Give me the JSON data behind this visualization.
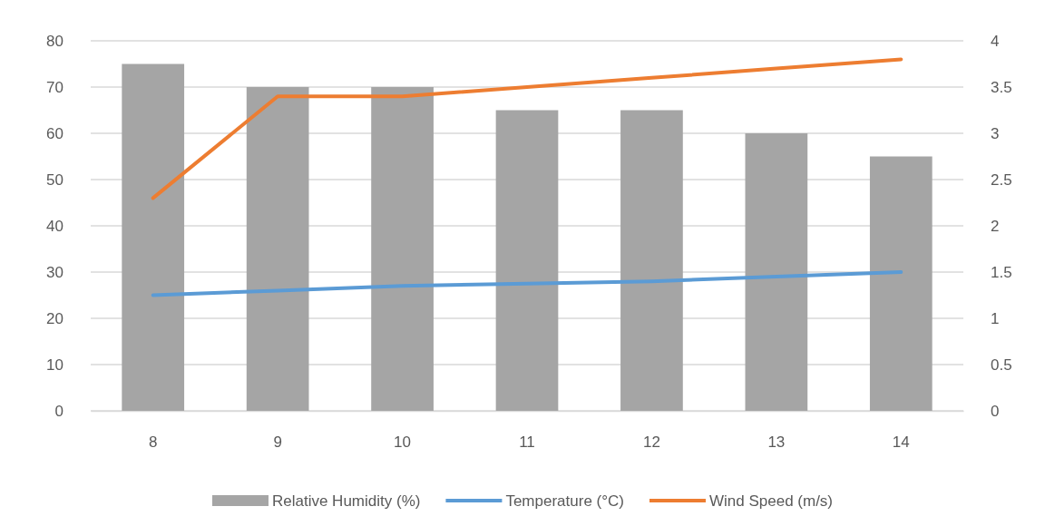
{
  "chart_data": {
    "type": "bar",
    "categories": [
      "8",
      "9",
      "10",
      "11",
      "12",
      "13",
      "14"
    ],
    "series": [
      {
        "name": "Relative Humidity (%)",
        "color": "#a5a5a5",
        "values": [
          75,
          70,
          70,
          65,
          65,
          60,
          55
        ]
      },
      {
        "name": "Temperature (°C)",
        "type": "line",
        "color": "#5b9bd5",
        "values": [
          25,
          26,
          27,
          27.5,
          28,
          29,
          30
        ]
      },
      {
        "name": "Wind Speed (m/s)",
        "type": "line",
        "axis": "y2",
        "color": "#ed7d31",
        "values": [
          2.3,
          3.4,
          3.4,
          3.5,
          3.6,
          3.7,
          3.8
        ]
      }
    ],
    "ylim": [
      0,
      80
    ],
    "yticks": [
      0,
      10,
      20,
      30,
      40,
      50,
      60,
      70,
      80
    ],
    "y2lim": [
      0,
      4
    ],
    "y2ticks": [
      0,
      0.5,
      1,
      1.5,
      2,
      2.5,
      3,
      3.5,
      4
    ],
    "grid": "y",
    "legend": "bottom",
    "marker": "none",
    "line_style": "solid"
  }
}
